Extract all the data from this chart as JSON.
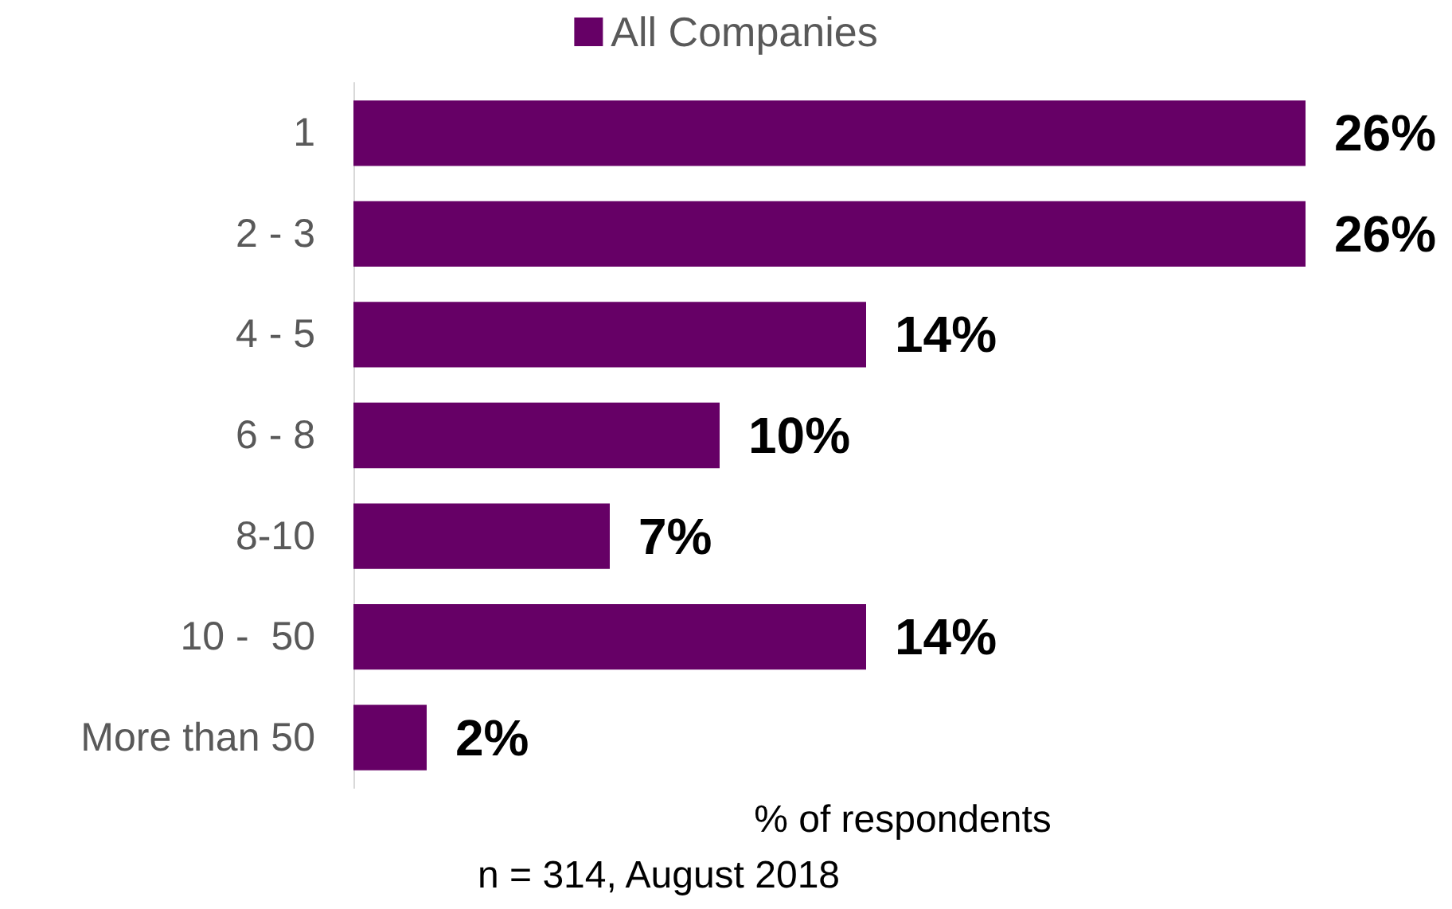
{
  "chart_data": {
    "type": "bar",
    "orientation": "horizontal",
    "categories": [
      "1",
      "2 - 3",
      "4 - 5",
      "6 - 8",
      "8-10",
      "10 -  50",
      "More than 50"
    ],
    "series": [
      {
        "name": "All Companies",
        "color": "#660066",
        "values": [
          26,
          26,
          14,
          10,
          7,
          14,
          2
        ],
        "value_labels": [
          "26%",
          "26%",
          "14%",
          "10%",
          "7%",
          "14%",
          "2%"
        ]
      }
    ],
    "xlabel": "% of respondents",
    "annotations": [
      "n = 314, August 2018"
    ],
    "legend": "top",
    "grid": false
  }
}
